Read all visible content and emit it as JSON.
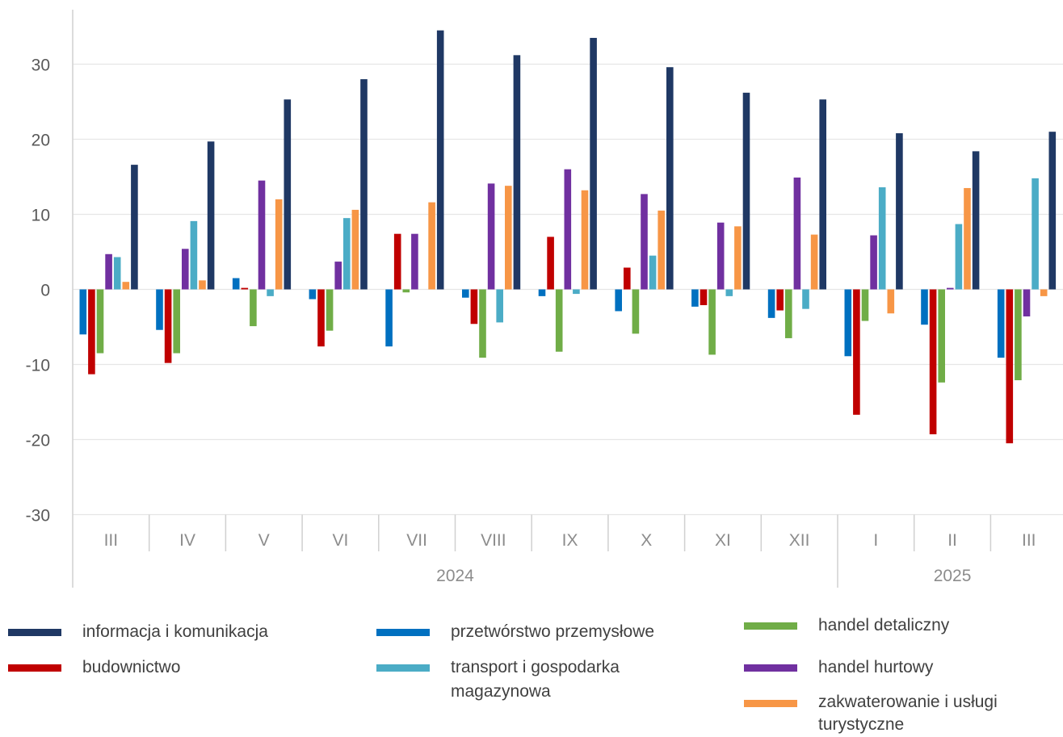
{
  "chart_data": {
    "type": "bar",
    "y_ticks": [
      "30",
      "20",
      "10",
      "0",
      "-10",
      "-20",
      "-30"
    ],
    "ylim": [
      -30,
      35
    ],
    "grid": true,
    "legend_position": "bottom",
    "categories": [
      "III",
      "IV",
      "V",
      "VI",
      "VII",
      "VIII",
      "IX",
      "X",
      "XI",
      "XII",
      "I",
      "II",
      "III"
    ],
    "year_groups": [
      {
        "label": "2024",
        "from": 0,
        "to": 9
      },
      {
        "label": "2025",
        "from": 10,
        "to": 12
      }
    ],
    "bar_order": [
      "przetwórstwo przemysłowe",
      "budownictwo",
      "handel detaliczny",
      "handel hurtowy",
      "transport i gospodarka magazynowa",
      "zakwaterowanie i usługi turystyczne",
      "informacja i komunikacja"
    ],
    "series": [
      {
        "name": "przetwórstwo przemysłowe",
        "color": "#0070C0",
        "values": [
          -6.0,
          -5.4,
          1.5,
          -1.3,
          -7.6,
          -1.1,
          -0.9,
          -2.9,
          -2.3,
          -3.8,
          -8.9,
          -4.7,
          -9.1
        ]
      },
      {
        "name": "budownictwo",
        "color": "#C00000",
        "values": [
          -11.3,
          -9.8,
          0.2,
          -7.6,
          7.4,
          -4.6,
          7.0,
          2.9,
          -2.1,
          -2.8,
          -16.7,
          -19.3,
          -20.5
        ]
      },
      {
        "name": "handel detaliczny",
        "color": "#70AD47",
        "values": [
          -8.5,
          -8.5,
          -4.9,
          -5.5,
          -0.4,
          -9.1,
          -8.3,
          -5.9,
          -8.7,
          -6.5,
          -4.2,
          -12.4,
          -12.1
        ]
      },
      {
        "name": "handel hurtowy",
        "color": "#7030A0",
        "values": [
          4.7,
          5.4,
          14.5,
          3.7,
          7.4,
          14.1,
          16.0,
          12.7,
          8.9,
          14.9,
          7.2,
          0.2,
          -3.6
        ]
      },
      {
        "name": "transport i gospodarka magazynowa",
        "color": "#4BACC6",
        "values": [
          4.3,
          9.1,
          -0.9,
          9.5,
          0.0,
          -4.4,
          -0.6,
          4.5,
          -0.9,
          -2.6,
          13.6,
          8.7,
          14.8
        ]
      },
      {
        "name": "zakwaterowanie i usługi turystyczne",
        "color": "#F79646",
        "values": [
          1.0,
          1.2,
          12.0,
          10.6,
          11.6,
          13.8,
          13.2,
          10.5,
          8.4,
          7.3,
          -3.2,
          13.5,
          -0.9
        ]
      },
      {
        "name": "informacja i komunikacja",
        "color": "#1F3864",
        "values": [
          16.6,
          19.7,
          25.3,
          28.0,
          34.5,
          31.2,
          33.5,
          29.6,
          26.2,
          25.3,
          20.8,
          18.4,
          21.0
        ]
      }
    ]
  },
  "legend": [
    {
      "label": "informacja i komunikacja",
      "color": "#1F3864"
    },
    {
      "label": "budownictwo",
      "color": "#C00000"
    },
    {
      "label": "przetwórstwo przemysłowe",
      "color": "#0070C0"
    },
    {
      "label": "transport i gospodarka magazynowa",
      "color": "#4BACC6"
    },
    {
      "label": "handel detaliczny",
      "color": "#70AD47"
    },
    {
      "label": "handel hurtowy",
      "color": "#7030A0"
    },
    {
      "label": "zakwaterowanie i usługi turystyczne",
      "color": "#F79646"
    }
  ]
}
